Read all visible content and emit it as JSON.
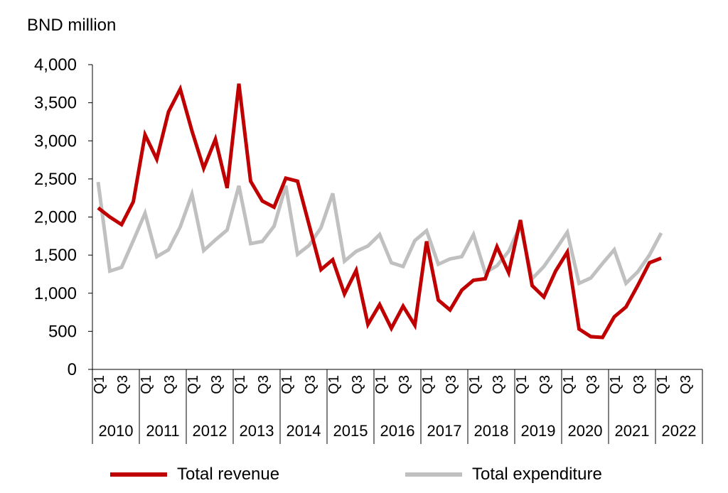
{
  "chart_data": {
    "type": "line",
    "ylabel": "BND million",
    "ylim": [
      0,
      4000
    ],
    "yticks": [
      0,
      500,
      1000,
      1500,
      2000,
      2500,
      3000,
      3500,
      4000
    ],
    "ytick_labels": [
      "0",
      "500",
      "1,000",
      "1,500",
      "2,000",
      "2,500",
      "3,000",
      "3,500",
      "4,000"
    ],
    "quarter_labels": [
      "Q1",
      "Q3"
    ],
    "years": [
      "2010",
      "2011",
      "2012",
      "2013",
      "2014",
      "2015",
      "2016",
      "2017",
      "2018",
      "2019",
      "2020",
      "2021",
      "2022"
    ],
    "grid": false,
    "legend_position": "bottom",
    "series": [
      {
        "name": "Total revenue",
        "color": "#c00000",
        "values": [
          2120,
          2000,
          1900,
          2200,
          3080,
          2760,
          3380,
          3680,
          3130,
          2640,
          3020,
          2380,
          3750,
          2470,
          2210,
          2130,
          2510,
          2470,
          1890,
          1310,
          1440,
          990,
          1300,
          590,
          850,
          540,
          830,
          580,
          1680,
          910,
          780,
          1040,
          1170,
          1190,
          1610,
          1270,
          1960,
          1100,
          950,
          1290,
          1540,
          530,
          430,
          420,
          690,
          820,
          1100,
          1400,
          1460
        ]
      },
      {
        "name": "Total expenditure",
        "color": "#c0c0c0",
        "values": [
          2460,
          1290,
          1340,
          1690,
          2050,
          1480,
          1570,
          1870,
          2300,
          1560,
          1700,
          1830,
          2410,
          1650,
          1680,
          1880,
          2410,
          1510,
          1630,
          1860,
          2310,
          1420,
          1550,
          1620,
          1770,
          1400,
          1350,
          1690,
          1820,
          1380,
          1450,
          1480,
          1770,
          1270,
          1360,
          1550,
          1890,
          1190,
          1350,
          1570,
          1800,
          1130,
          1200,
          1390,
          1570,
          1130,
          1280,
          1500,
          1790
        ]
      }
    ]
  }
}
